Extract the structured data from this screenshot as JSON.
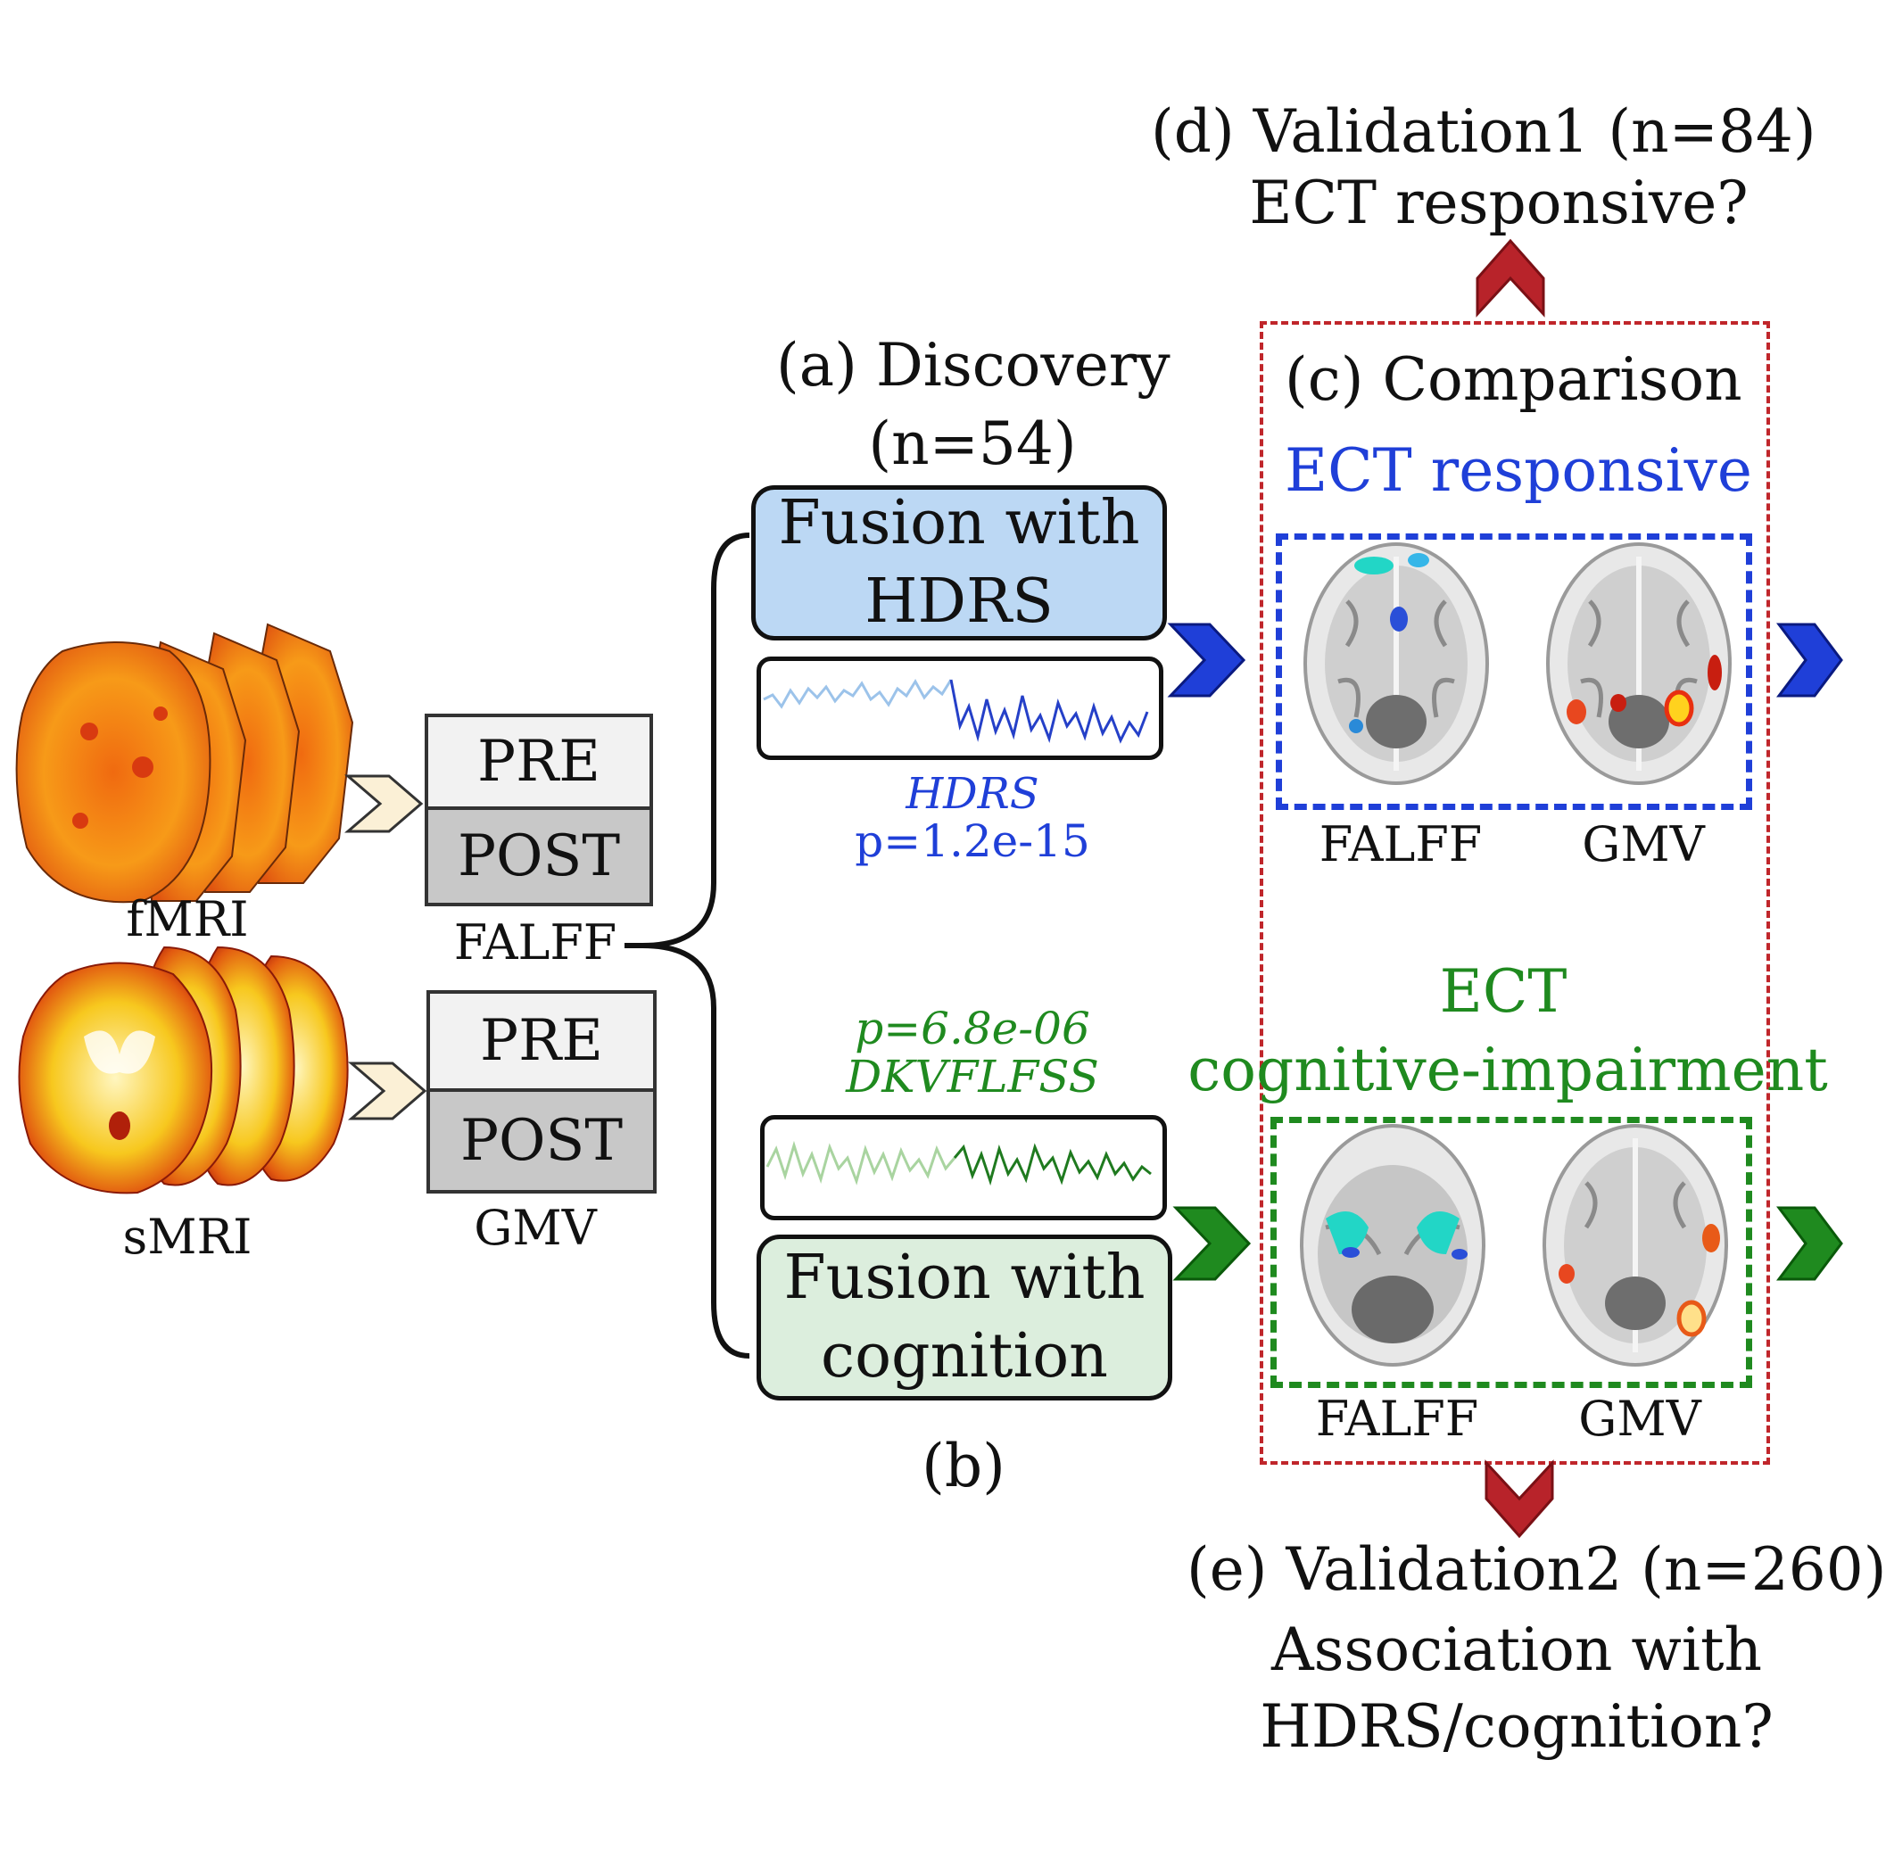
{
  "sections": {
    "validation1": {
      "title_label": "(d)",
      "title_text": "Validation1",
      "n_label": "(n=84)",
      "question": "ECT responsive?"
    },
    "discovery": {
      "label": "(a) Discovery",
      "n_label": "(n=54)"
    },
    "comparison": {
      "label": "(c)",
      "title": "Comparison",
      "responsive_label": "ECT responsive",
      "impair_line1": "ECT",
      "impair_line2": "cognitive-impairment",
      "falff_top": "FALFF",
      "gmv_top": "GMV",
      "falff_bottom": "FALFF",
      "gmv_bottom": "GMV"
    },
    "fusion_hdrs": {
      "line1": "Fusion with",
      "line2": "HDRS",
      "stat_name": "HDRS",
      "stat_p": "p=1.2e-15"
    },
    "fusion_cognition": {
      "line1": "Fusion with",
      "line2": "cognition",
      "stat_p": "p=6.8e-06",
      "stat_name": "DKVFLFSS",
      "label": "(b)"
    },
    "validation2": {
      "title_label": "(e)",
      "title_text": "Validation2",
      "n_label": "(n=260)",
      "question_line1": "Association with",
      "question_line2": "HDRS/cognition?"
    }
  },
  "inputs": {
    "fmri": {
      "label": "fMRI",
      "feature": "FALFF",
      "pre": "PRE",
      "post": "POST"
    },
    "smri": {
      "label": "sMRI",
      "feature": "GMV",
      "pre": "PRE",
      "post": "POST"
    }
  },
  "colors": {
    "red": "#c0262b",
    "blue": "#1f3fd8",
    "green": "#1f8a1f",
    "hdrs_box": "#bcd8f4",
    "cog_box": "#dceedd",
    "pre": "#f2f2f2",
    "post": "#c8c8c8"
  }
}
